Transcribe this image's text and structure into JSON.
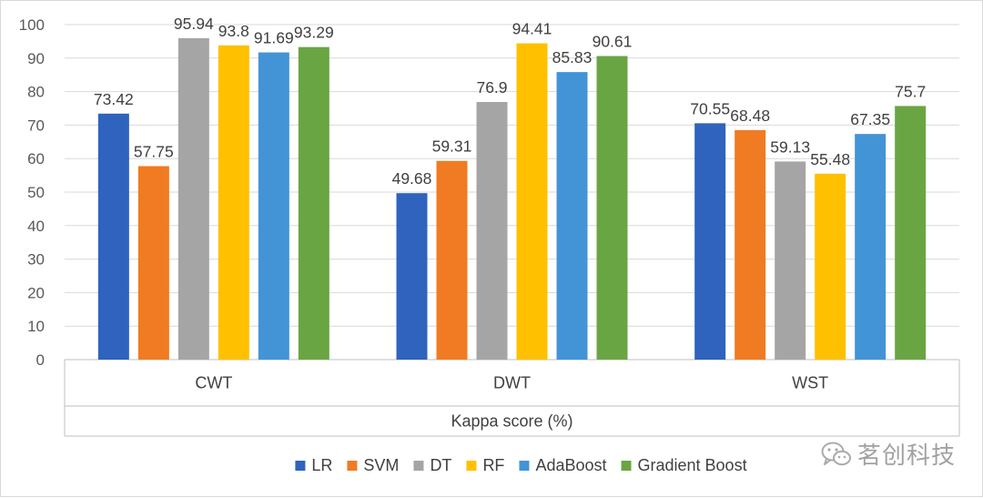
{
  "chart_data": {
    "type": "bar",
    "title": "",
    "xlabel": "Kappa score (%)",
    "ylabel": "",
    "ylim": [
      0,
      100
    ],
    "y_ticks": [
      0,
      10,
      20,
      30,
      40,
      50,
      60,
      70,
      80,
      90,
      100
    ],
    "grid": true,
    "legend_position": "bottom",
    "categories": [
      "CWT",
      "DWT",
      "WST"
    ],
    "series": [
      {
        "name": "LR",
        "color": "#2f63bd",
        "values": [
          73.42,
          49.68,
          70.55
        ],
        "labels": [
          "73.42",
          "49.68",
          "70.55"
        ]
      },
      {
        "name": "SVM",
        "color": "#f07b22",
        "values": [
          57.75,
          59.31,
          68.48
        ],
        "labels": [
          "57.75",
          "59.31",
          "68.48"
        ]
      },
      {
        "name": "DT",
        "color": "#a5a5a5",
        "values": [
          95.94,
          76.9,
          59.13
        ],
        "labels": [
          "95.94",
          "76.9",
          "59.13"
        ]
      },
      {
        "name": "RF",
        "color": "#ffc000",
        "values": [
          93.8,
          94.41,
          55.48
        ],
        "labels": [
          "93.8",
          "94.41",
          "55.48"
        ]
      },
      {
        "name": "AdaBoost",
        "color": "#4394d6",
        "values": [
          91.69,
          85.83,
          67.35
        ],
        "labels": [
          "91.69",
          "85.83",
          "67.35"
        ]
      },
      {
        "name": "Gradient Boost",
        "color": "#6aa544",
        "values": [
          93.29,
          90.61,
          75.7
        ],
        "labels": [
          "93.29",
          "90.61",
          "75.7"
        ]
      }
    ]
  },
  "watermark": {
    "text": "茗创科技",
    "icon": "wechat-icon"
  }
}
